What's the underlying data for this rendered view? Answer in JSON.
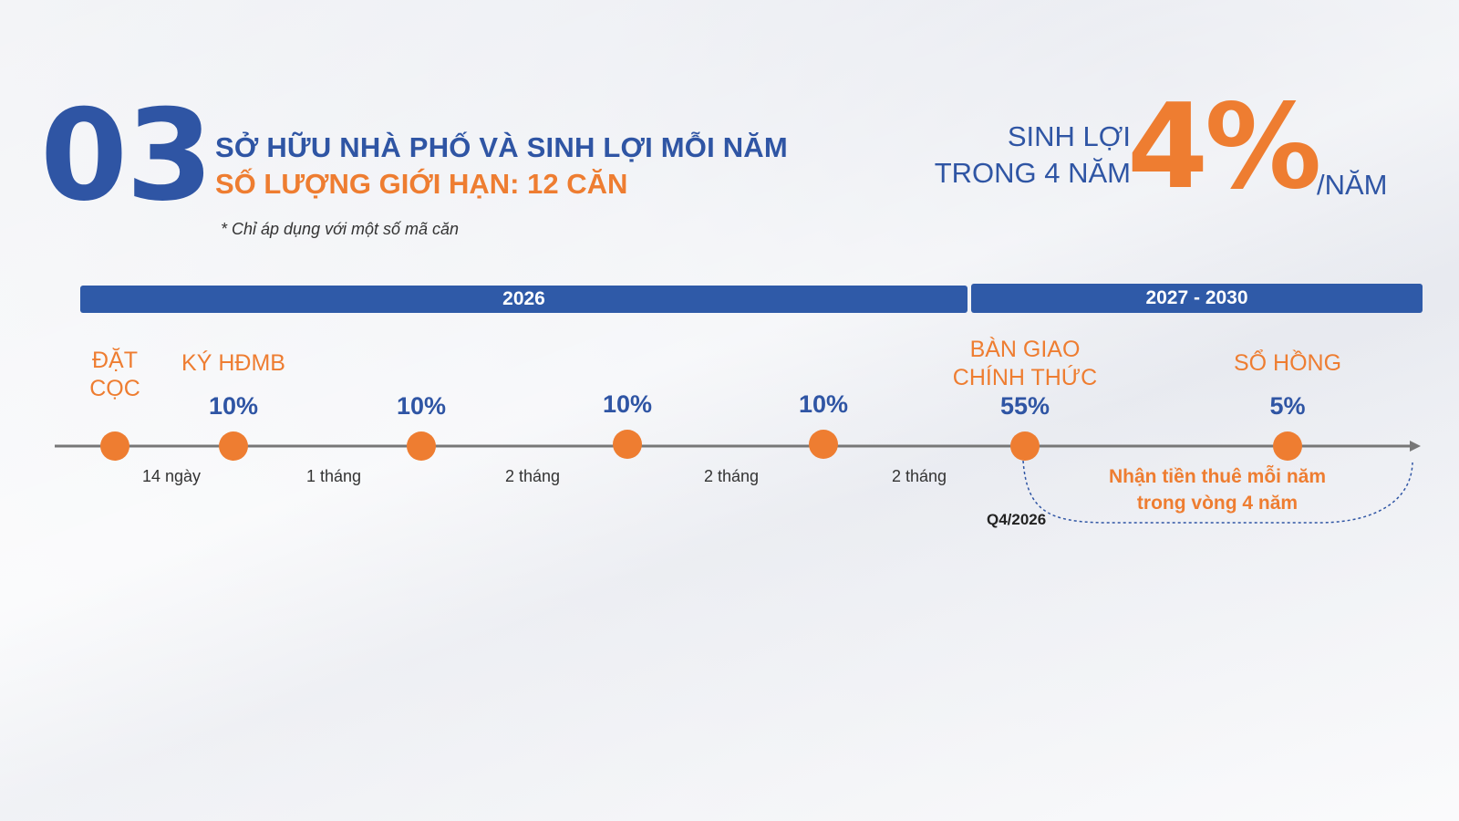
{
  "header": {
    "number": "03",
    "title_line1": "SỞ HỮU NHÀ PHỐ VÀ SINH LỢI MỖI NĂM",
    "title_line2": "SỐ LƯỢNG GIỚI HẠN: 12 CĂN",
    "note": "* Chỉ áp dụng với một số mã căn"
  },
  "yield": {
    "line1": "SINH LỢI",
    "line2": "TRONG 4 NĂM",
    "value": "4%",
    "unit": "/NĂM"
  },
  "periods": [
    "2026",
    "2027 - 2030"
  ],
  "milestones": [
    {
      "label": "ĐẶT\nCỌC",
      "percent": ""
    },
    {
      "label": "KÝ HĐMB",
      "percent": "10%"
    },
    {
      "label": "",
      "percent": "10%"
    },
    {
      "label": "",
      "percent": "10%"
    },
    {
      "label": "",
      "percent": "10%"
    },
    {
      "label": "BÀN GIAO\nCHÍNH THỨC",
      "percent": "55%"
    },
    {
      "label": "SỔ HỒNG",
      "percent": "5%"
    }
  ],
  "intervals": [
    "14 ngày",
    "1 tháng",
    "2 tháng",
    "2 tháng",
    "2 tháng"
  ],
  "handover_date": "Q4/2026",
  "rent_note": {
    "line1": "Nhận tiền thuê mỗi năm",
    "line2": "trong vòng 4 năm"
  },
  "colors": {
    "blue": "#2f55a4",
    "orange": "#ee7d31",
    "timeline": "#777777"
  }
}
